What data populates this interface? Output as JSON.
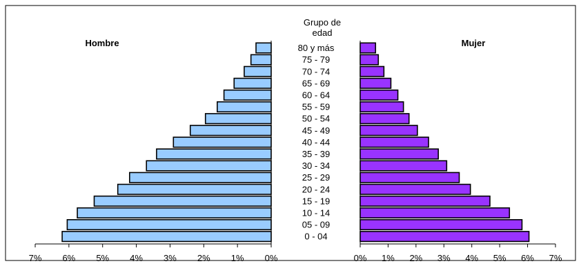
{
  "chart_data": {
    "type": "bar",
    "orientation": "population-pyramid",
    "center_header": "Grupo de\nedad",
    "categories": [
      "80 y más",
      "75 - 79",
      "70 - 74",
      "65 - 69",
      "60 - 64",
      "55 - 59",
      "50 - 54",
      "45 - 49",
      "40 - 44",
      "35 - 39",
      "30 - 34",
      "25 - 29",
      "20 - 24",
      "15 - 19",
      "10 - 14",
      "05 - 09",
      "0 - 04"
    ],
    "series": [
      {
        "name": "Hombre",
        "color": "#99ccff",
        "values": [
          0.45,
          0.6,
          0.8,
          1.1,
          1.4,
          1.6,
          1.95,
          2.4,
          2.9,
          3.4,
          3.7,
          4.2,
          4.55,
          5.25,
          5.75,
          6.05,
          6.2
        ]
      },
      {
        "name": "Mujer",
        "color": "#9933ff",
        "values": [
          0.55,
          0.65,
          0.85,
          1.1,
          1.35,
          1.55,
          1.75,
          2.05,
          2.45,
          2.8,
          3.1,
          3.55,
          3.95,
          4.65,
          5.35,
          5.8,
          6.05
        ]
      }
    ],
    "left_ticks": [
      "7%",
      "6%",
      "5%",
      "4%",
      "3%",
      "2%",
      "1%",
      "0%"
    ],
    "right_ticks": [
      "0%",
      "1%",
      "2%",
      "3%",
      "4%",
      "5%",
      "6%",
      "7%"
    ],
    "xlim": [
      0,
      7
    ],
    "grid": false
  }
}
